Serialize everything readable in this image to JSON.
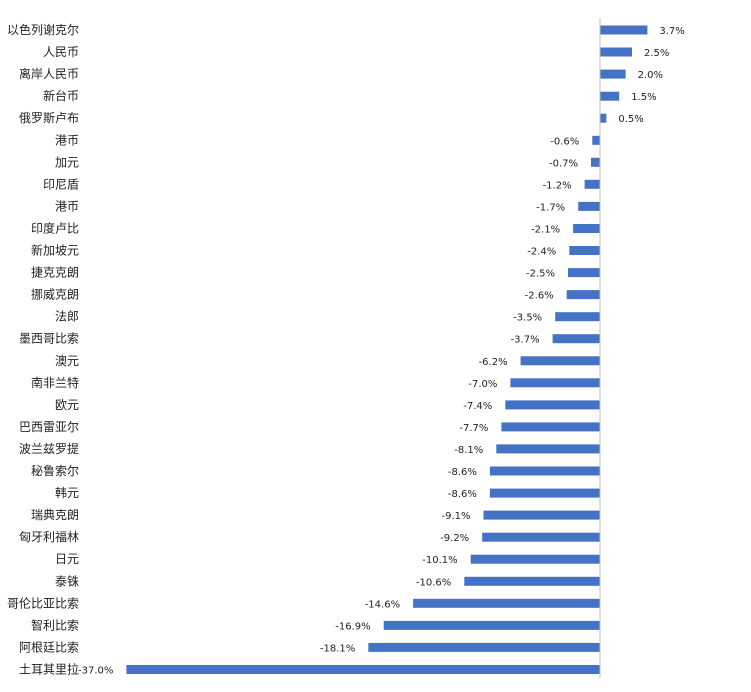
{
  "chart_data": {
    "type": "bar",
    "orientation": "horizontal",
    "title": "",
    "xlabel": "",
    "ylabel": "",
    "value_suffix": "%",
    "bar_color": "#4472C4",
    "axis_color": "#bfbfbf",
    "grid": false,
    "legend": "none",
    "xlim": [
      -37.0,
      3.7
    ],
    "categories": [
      "以色列谢克尔",
      "人民币",
      "离岸人民币",
      "新台币",
      "俄罗斯卢布",
      "港币",
      "加元",
      "印尼盾",
      "港币",
      "印度卢比",
      "新加坡元",
      "捷克克朗",
      "挪威克朗",
      "法郎",
      "墨西哥比索",
      "澳元",
      "南非兰特",
      "欧元",
      "巴西雷亚尔",
      "波兰兹罗提",
      "秘鲁索尔",
      "韩元",
      "瑞典克朗",
      "匈牙利福林",
      "日元",
      "泰铢",
      "哥伦比亚比索",
      "智利比索",
      "阿根廷比索",
      "土耳其里拉"
    ],
    "values": [
      3.7,
      2.5,
      2.0,
      1.5,
      0.5,
      -0.6,
      -0.7,
      -1.2,
      -1.7,
      -2.1,
      -2.4,
      -2.5,
      -2.6,
      -3.5,
      -3.7,
      -6.2,
      -7.0,
      -7.4,
      -7.7,
      -8.1,
      -8.6,
      -8.6,
      -9.1,
      -9.2,
      -10.1,
      -10.6,
      -14.6,
      -16.9,
      -18.1,
      -37.0
    ]
  }
}
